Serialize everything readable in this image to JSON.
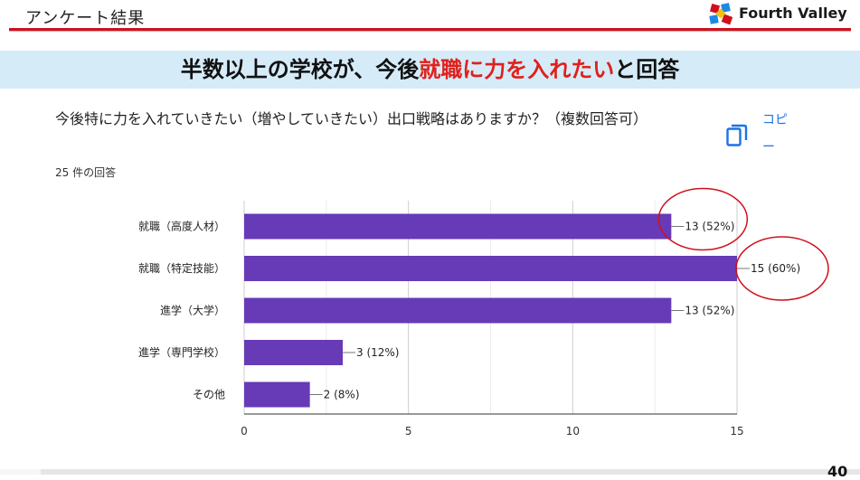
{
  "header": {
    "section_label": "アンケート結果",
    "logo_text": "Fourth Valley"
  },
  "banner": {
    "part1": "半数以上の学校が、今後",
    "highlight": "就職に力を入れたい",
    "part2": "と回答"
  },
  "question": {
    "text": "今後特に力を入れていきたい（増やしていきたい）出口戦略はありますか？（複数回答可）",
    "response_count": "25 件の回答",
    "copy_label": "コピー"
  },
  "chart_data": {
    "type": "bar",
    "orientation": "horizontal",
    "categories": [
      "就職（高度人材）",
      "就職（特定技能）",
      "進学（大学）",
      "進学（専門学校）",
      "その他"
    ],
    "values": [
      13,
      15,
      13,
      3,
      2
    ],
    "data_labels": [
      "13 (52%)",
      "15 (60%)",
      "13 (52%)",
      "3 (12%)",
      "2 (8%)"
    ],
    "xlim": [
      0,
      15
    ],
    "xticks": [
      0,
      5,
      10,
      15
    ],
    "grid": true,
    "bar_color": "#673ab7",
    "highlighted_categories": [
      "就職（高度人材）",
      "就職（特定技能）"
    ],
    "highlight_color": "#d0101c"
  },
  "footer": {
    "page_number": "40"
  }
}
